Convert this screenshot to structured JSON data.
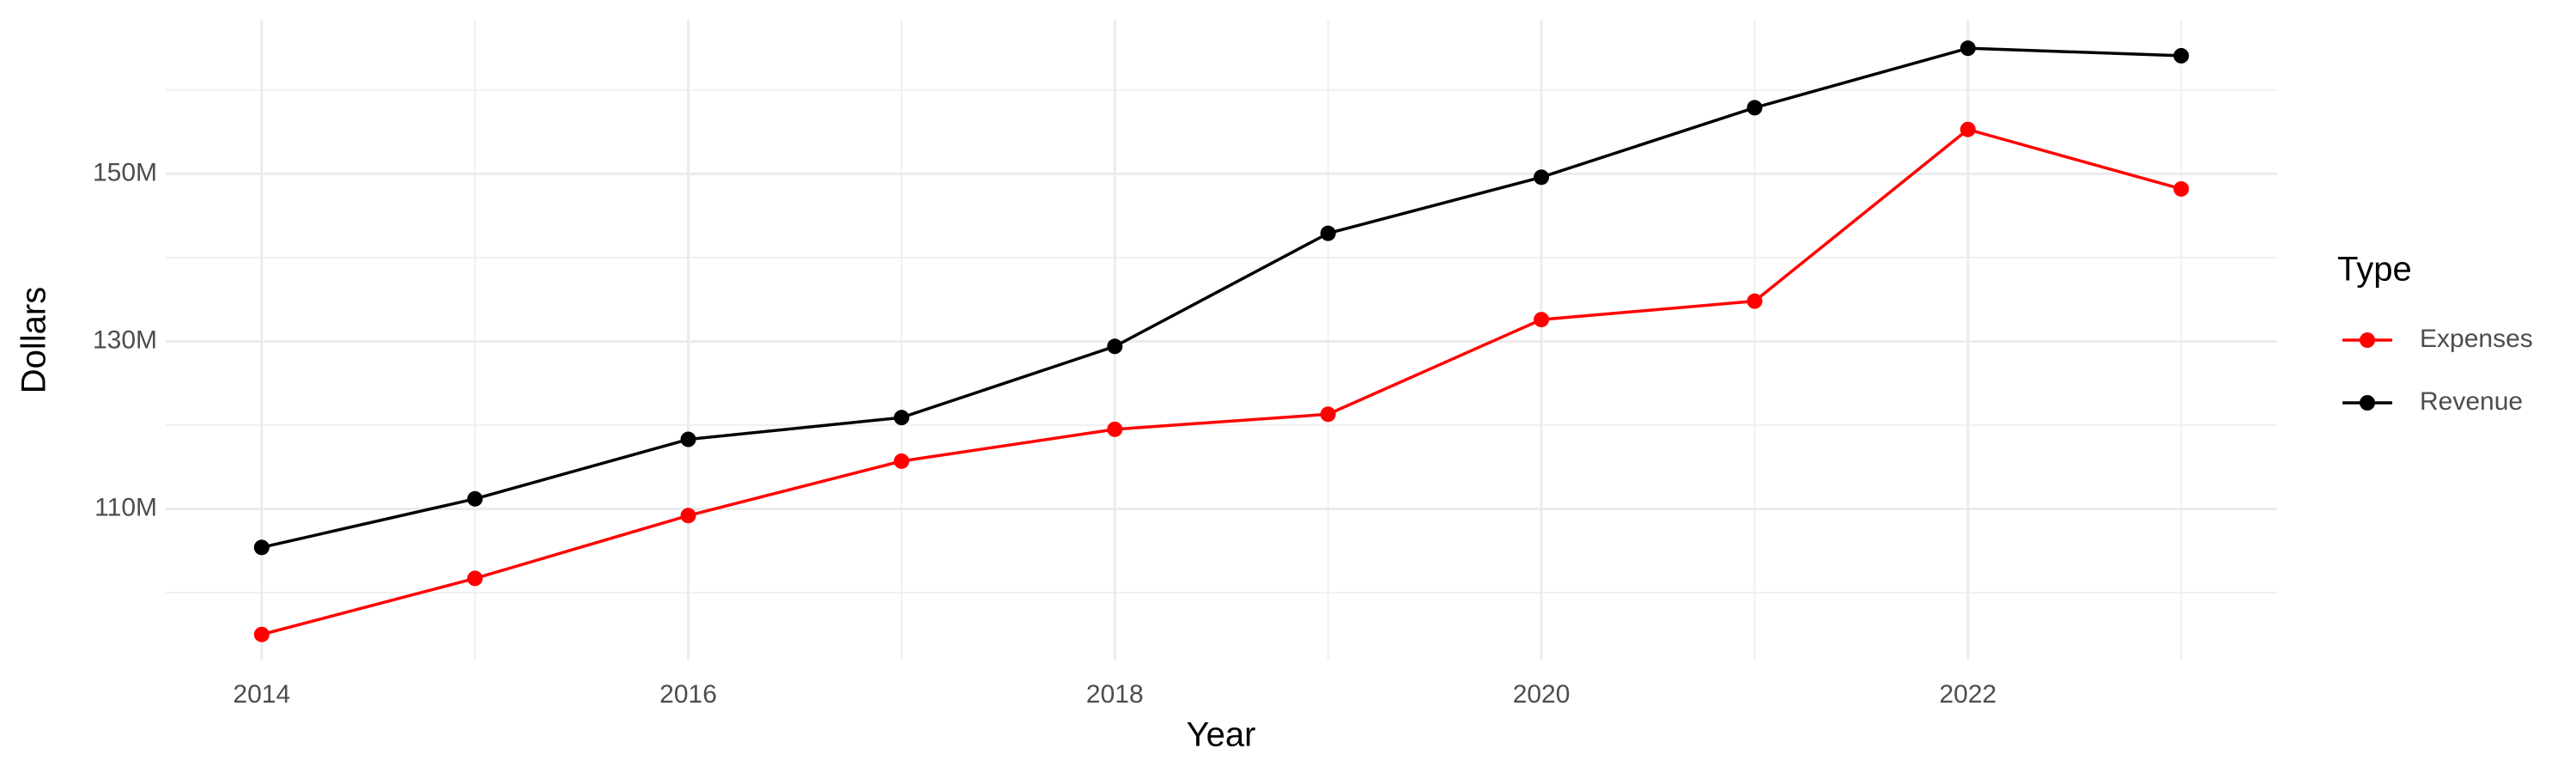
{
  "chart_data": {
    "type": "line",
    "x_label": "Year",
    "y_label": "Dollars",
    "legend_title": "Type",
    "legend_position": "right",
    "grid": true,
    "x": [
      2014,
      2015,
      2016,
      2017,
      2018,
      2019,
      2020,
      2021,
      2022,
      2023
    ],
    "series": [
      {
        "name": "Expenses",
        "color": "#ff0000",
        "values": [
          95000000,
          101700000,
          109200000,
          115700000,
          119500000,
          121300000,
          132600000,
          134800000,
          155300000,
          148200000
        ]
      },
      {
        "name": "Revenue",
        "color": "#000000",
        "values": [
          105400000,
          111200000,
          118300000,
          120900000,
          129400000,
          142900000,
          149600000,
          157900000,
          165000000,
          164100000
        ]
      }
    ],
    "xlim": [
      2013.55,
      2023.45
    ],
    "xticks": [
      2014,
      2016,
      2018,
      2020,
      2022
    ],
    "ylim": [
      92000000,
      168400000
    ],
    "yticks": [
      {
        "value": 110000000,
        "label": "110M"
      },
      {
        "value": 130000000,
        "label": "130M"
      },
      {
        "value": 150000000,
        "label": "150M"
      }
    ],
    "minor_yticks": [
      100000000,
      120000000,
      140000000,
      160000000
    ],
    "minor_xticks": [
      2015,
      2017,
      2019,
      2021,
      2023
    ]
  }
}
